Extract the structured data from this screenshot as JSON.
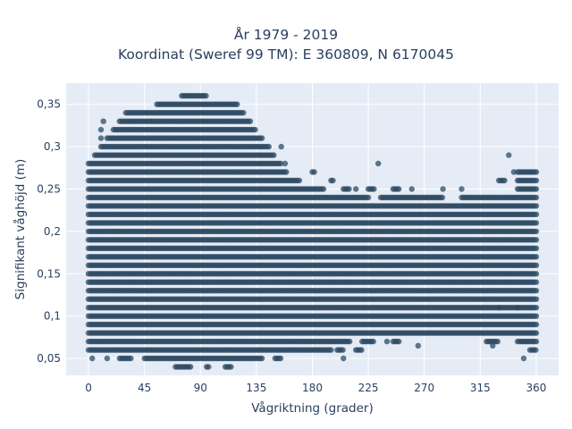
{
  "chart_data": {
    "type": "scatter",
    "title_line1": "År 1979 - 2019",
    "title_line2": "Koordinat (Sweref 99 TM): E 360809, N 6170045",
    "xlabel": "Vågriktning (grader)",
    "ylabel": "Signifikant våghöjd (m)",
    "xlim": [
      -18,
      378
    ],
    "ylim": [
      0.03,
      0.375
    ],
    "xticks": [
      0,
      45,
      90,
      135,
      180,
      225,
      270,
      315,
      360
    ],
    "xtick_labels": [
      "0",
      "45",
      "90",
      "135",
      "180",
      "225",
      "270",
      "315",
      "360"
    ],
    "yticks": [
      0.05,
      0.1,
      0.15,
      0.2,
      0.25,
      0.3,
      0.35
    ],
    "ytick_labels": [
      "0,05",
      "0,1",
      "0,15",
      "0,2",
      "0,25",
      "0,3",
      "0,35"
    ],
    "grid": true,
    "background": "#e5ecf6",
    "marker_color": "#2f4b63",
    "y_step": 0.01,
    "bands": [
      {
        "y": 0.04,
        "x_ranges": [
          [
            70,
            82
          ],
          [
            95,
            97
          ],
          [
            110,
            115
          ]
        ]
      },
      {
        "y": 0.05,
        "x_ranges": [
          [
            3,
            3
          ],
          [
            15,
            15
          ],
          [
            25,
            35
          ],
          [
            45,
            140
          ],
          [
            150,
            155
          ]
        ]
      },
      {
        "y": 0.06,
        "x_ranges": [
          [
            0,
            195
          ],
          [
            200,
            205
          ],
          [
            215,
            220
          ],
          [
            355,
            360
          ]
        ]
      },
      {
        "y": 0.07,
        "x_ranges": [
          [
            0,
            210
          ],
          [
            220,
            230
          ],
          [
            245,
            250
          ],
          [
            320,
            330
          ],
          [
            345,
            360
          ]
        ]
      },
      {
        "y": 0.08,
        "x_ranges": [
          [
            0,
            360
          ]
        ]
      },
      {
        "y": 0.09,
        "x_ranges": [
          [
            0,
            360
          ]
        ]
      },
      {
        "y": 0.1,
        "x_ranges": [
          [
            0,
            360
          ]
        ]
      },
      {
        "y": 0.11,
        "x_ranges": [
          [
            0,
            360
          ]
        ]
      },
      {
        "y": 0.12,
        "x_ranges": [
          [
            0,
            360
          ]
        ]
      },
      {
        "y": 0.13,
        "x_ranges": [
          [
            0,
            360
          ]
        ]
      },
      {
        "y": 0.14,
        "x_ranges": [
          [
            0,
            360
          ]
        ]
      },
      {
        "y": 0.15,
        "x_ranges": [
          [
            0,
            360
          ]
        ]
      },
      {
        "y": 0.16,
        "x_ranges": [
          [
            0,
            360
          ]
        ]
      },
      {
        "y": 0.17,
        "x_ranges": [
          [
            0,
            360
          ]
        ]
      },
      {
        "y": 0.18,
        "x_ranges": [
          [
            0,
            360
          ]
        ]
      },
      {
        "y": 0.19,
        "x_ranges": [
          [
            0,
            360
          ]
        ]
      },
      {
        "y": 0.2,
        "x_ranges": [
          [
            0,
            360
          ]
        ]
      },
      {
        "y": 0.21,
        "x_ranges": [
          [
            0,
            360
          ]
        ]
      },
      {
        "y": 0.22,
        "x_ranges": [
          [
            0,
            360
          ]
        ]
      },
      {
        "y": 0.23,
        "x_ranges": [
          [
            0,
            360
          ]
        ]
      },
      {
        "y": 0.24,
        "x_ranges": [
          [
            0,
            225
          ],
          [
            235,
            285
          ],
          [
            300,
            360
          ]
        ]
      },
      {
        "y": 0.25,
        "x_ranges": [
          [
            0,
            190
          ],
          [
            205,
            210
          ],
          [
            225,
            230
          ],
          [
            245,
            250
          ],
          [
            345,
            360
          ]
        ]
      },
      {
        "y": 0.26,
        "x_ranges": [
          [
            0,
            170
          ],
          [
            195,
            197
          ],
          [
            330,
            335
          ],
          [
            345,
            360
          ]
        ]
      },
      {
        "y": 0.27,
        "x_ranges": [
          [
            0,
            160
          ],
          [
            180,
            182
          ],
          [
            345,
            360
          ]
        ]
      },
      {
        "y": 0.28,
        "x_ranges": [
          [
            0,
            155
          ]
        ]
      },
      {
        "y": 0.29,
        "x_ranges": [
          [
            5,
            150
          ]
        ]
      },
      {
        "y": 0.3,
        "x_ranges": [
          [
            10,
            145
          ]
        ]
      },
      {
        "y": 0.31,
        "x_ranges": [
          [
            15,
            140
          ]
        ]
      },
      {
        "y": 0.32,
        "x_ranges": [
          [
            20,
            135
          ]
        ]
      },
      {
        "y": 0.33,
        "x_ranges": [
          [
            25,
            130
          ]
        ]
      },
      {
        "y": 0.34,
        "x_ranges": [
          [
            30,
            125
          ]
        ]
      },
      {
        "y": 0.35,
        "x_ranges": [
          [
            55,
            120
          ]
        ]
      },
      {
        "y": 0.36,
        "x_ranges": [
          [
            75,
            95
          ]
        ]
      }
    ],
    "outliers": [
      {
        "x": 12,
        "y": 0.33
      },
      {
        "x": 10,
        "y": 0.32
      },
      {
        "x": 10,
        "y": 0.31
      },
      {
        "x": 155,
        "y": 0.3
      },
      {
        "x": 158,
        "y": 0.28
      },
      {
        "x": 215,
        "y": 0.25
      },
      {
        "x": 233,
        "y": 0.28
      },
      {
        "x": 260,
        "y": 0.25
      },
      {
        "x": 285,
        "y": 0.25
      },
      {
        "x": 300,
        "y": 0.25
      },
      {
        "x": 338,
        "y": 0.29
      },
      {
        "x": 342,
        "y": 0.27
      },
      {
        "x": 240,
        "y": 0.07
      },
      {
        "x": 265,
        "y": 0.065
      },
      {
        "x": 205,
        "y": 0.05
      },
      {
        "x": 325,
        "y": 0.065
      },
      {
        "x": 350,
        "y": 0.05
      },
      {
        "x": 330,
        "y": 0.11
      },
      {
        "x": 345,
        "y": 0.11
      }
    ]
  }
}
